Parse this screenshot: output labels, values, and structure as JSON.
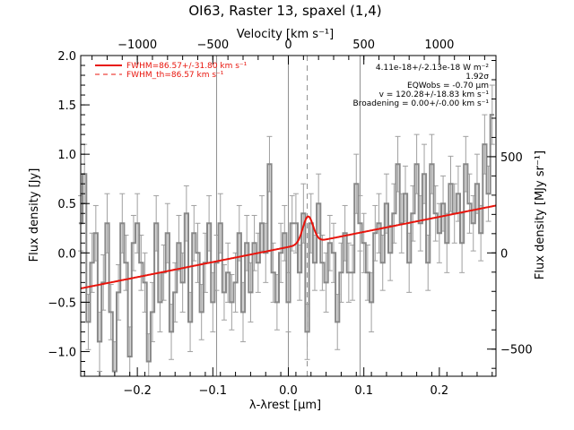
{
  "chart_data": {
    "type": "line",
    "title": "OI63, Raster 13, spaxel (1,4)",
    "xlabel": "λ-λrest [μm]",
    "ylabel": "Flux density [Jy]",
    "top_xlabel": "Velocity [km s⁻¹]",
    "right_ylabel": "Flux density [MJy sr⁻¹]",
    "xlim": [
      -0.275,
      0.275
    ],
    "ylim": [
      -1.25,
      2.0
    ],
    "x_ticks": [
      -0.2,
      -0.1,
      0.0,
      0.1,
      0.2
    ],
    "x_tick_labels": [
      "−0.2",
      "−0.1",
      "0.0",
      "0.1",
      "0.2"
    ],
    "y_ticks": [
      -1.0,
      -0.5,
      0.0,
      0.5,
      1.0,
      1.5,
      2.0
    ],
    "y_tick_labels": [
      "−1.0",
      "−0.5",
      "0.0",
      "0.5",
      "1.0",
      "1.5",
      "2.0"
    ],
    "top_x_ticks": [
      -1000,
      -500,
      0,
      500,
      1000
    ],
    "top_x_tick_labels": [
      "−1000",
      "−500",
      "0",
      "500",
      "1000"
    ],
    "right_y_ticks": [
      -500,
      0,
      500
    ],
    "right_y_tick_labels": [
      "−500",
      "0",
      "500"
    ],
    "vertical_lines": [
      -0.095,
      0.0,
      0.095
    ],
    "dashed_line": 0.025,
    "legend": [
      {
        "label": "FWHM=86.57+/-31.80 km s⁻¹",
        "style": "solid",
        "color": "#e8140c"
      },
      {
        "label": "FWHM_th=86.57 km s⁻¹",
        "style": "dashed",
        "color": "#e8140c"
      }
    ],
    "annotations": [
      "4.11e-18+/-2.13e-18 W m⁻²",
      "1.92σ",
      "EQWobs = -0.70 μm",
      "v = 120.28+/-18.83 km s⁻¹",
      "Broadening = 0.00+/-0.00 km s⁻¹"
    ],
    "fit": {
      "continuum_start": [
        -0.275,
        -0.36
      ],
      "continuum_end": [
        0.275,
        0.48
      ],
      "line_center": 0.026,
      "line_sigma": 0.0068,
      "line_amplitude": 0.27
    },
    "series": [
      {
        "color": "#888888",
        "step": true,
        "error_color": "#a0a0a0",
        "x": [
          -0.275,
          -0.27,
          -0.265,
          -0.26,
          -0.255,
          -0.25,
          -0.245,
          -0.24,
          -0.235,
          -0.23,
          -0.225,
          -0.22,
          -0.215,
          -0.21,
          -0.205,
          -0.2,
          -0.195,
          -0.19,
          -0.185,
          -0.18,
          -0.175,
          -0.17,
          -0.165,
          -0.16,
          -0.155,
          -0.15,
          -0.145,
          -0.14,
          -0.135,
          -0.13,
          -0.125,
          -0.12,
          -0.115,
          -0.11,
          -0.105,
          -0.1,
          -0.095,
          -0.09,
          -0.085,
          -0.08,
          -0.075,
          -0.07,
          -0.065,
          -0.06,
          -0.055,
          -0.05,
          -0.045,
          -0.04,
          -0.035,
          -0.03,
          -0.025,
          -0.02,
          -0.015,
          -0.01,
          -0.005,
          0.0,
          0.005,
          0.01,
          0.015,
          0.02,
          0.025,
          0.03,
          0.035,
          0.04,
          0.045,
          0.05,
          0.055,
          0.06,
          0.065,
          0.07,
          0.075,
          0.08,
          0.085,
          0.09,
          0.095,
          0.1,
          0.105,
          0.11,
          0.115,
          0.12,
          0.125,
          0.13,
          0.135,
          0.14,
          0.145,
          0.15,
          0.155,
          0.16,
          0.165,
          0.17,
          0.175,
          0.18,
          0.185,
          0.19,
          0.195,
          0.2,
          0.205,
          0.21,
          0.215,
          0.22,
          0.225,
          0.23,
          0.235,
          0.24,
          0.245,
          0.25,
          0.255,
          0.26,
          0.265,
          0.27
        ],
        "y": [
          0.3,
          0.8,
          -0.7,
          -0.1,
          0.2,
          -0.9,
          -0.3,
          0.3,
          -0.6,
          -1.2,
          -0.4,
          0.3,
          -0.1,
          -1.05,
          0.1,
          0.3,
          -0.1,
          -0.3,
          -1.1,
          -0.6,
          0.3,
          -0.5,
          -0.2,
          0.2,
          -0.8,
          -0.4,
          0.1,
          -0.3,
          0.4,
          -0.7,
          0.2,
          0.0,
          -0.6,
          -0.1,
          0.3,
          -0.5,
          -0.1,
          0.3,
          -0.4,
          -0.2,
          -0.5,
          -0.3,
          0.2,
          -0.6,
          0.1,
          -0.4,
          0.1,
          -0.1,
          0.3,
          0.0,
          0.9,
          -0.2,
          -0.5,
          0.0,
          0.2,
          -0.5,
          0.3,
          0.3,
          -0.2,
          0.4,
          -0.8,
          0.3,
          -0.1,
          0.5,
          -0.1,
          -0.3,
          0.1,
          0.0,
          -0.7,
          -0.2,
          0.2,
          -0.2,
          -0.2,
          0.7,
          0.3,
          0.1,
          -0.2,
          -0.5,
          0.2,
          0.3,
          -0.1,
          0.5,
          0.0,
          0.4,
          0.9,
          0.3,
          0.6,
          -0.1,
          0.4,
          0.9,
          0.3,
          0.8,
          -0.1,
          0.9,
          0.4,
          0.2,
          0.5,
          0.1,
          0.7,
          0.4,
          0.6,
          0.1,
          0.9,
          0.5,
          0.3,
          0.7,
          0.2,
          1.1,
          0.6,
          1.4
        ],
        "err": [
          0.28,
          0.3,
          0.28,
          0.3,
          0.28,
          0.3,
          0.28,
          0.3,
          0.28,
          0.3,
          0.28,
          0.3,
          0.28,
          0.3,
          0.28,
          0.3,
          0.28,
          0.3,
          0.28,
          0.3,
          0.28,
          0.3,
          0.28,
          0.3,
          0.28,
          0.3,
          0.28,
          0.3,
          0.28,
          0.3,
          0.28,
          0.3,
          0.28,
          0.3,
          0.28,
          0.3,
          0.28,
          0.3,
          0.28,
          0.3,
          0.28,
          0.3,
          0.28,
          0.3,
          0.28,
          0.3,
          0.28,
          0.3,
          0.28,
          0.3,
          0.28,
          0.3,
          0.28,
          0.3,
          0.28,
          0.3,
          0.28,
          0.3,
          0.28,
          0.3,
          0.28,
          0.3,
          0.28,
          0.3,
          0.28,
          0.3,
          0.28,
          0.3,
          0.28,
          0.3,
          0.28,
          0.3,
          0.28,
          0.3,
          0.28,
          0.3,
          0.28,
          0.3,
          0.28,
          0.3,
          0.28,
          0.3,
          0.28,
          0.3,
          0.28,
          0.3,
          0.28,
          0.3,
          0.28,
          0.3,
          0.28,
          0.3,
          0.28,
          0.3,
          0.28,
          0.3,
          0.28,
          0.3,
          0.28,
          0.3,
          0.28,
          0.3,
          0.28,
          0.3,
          0.28,
          0.3,
          0.28,
          0.3,
          0.28,
          0.3
        ]
      }
    ]
  }
}
